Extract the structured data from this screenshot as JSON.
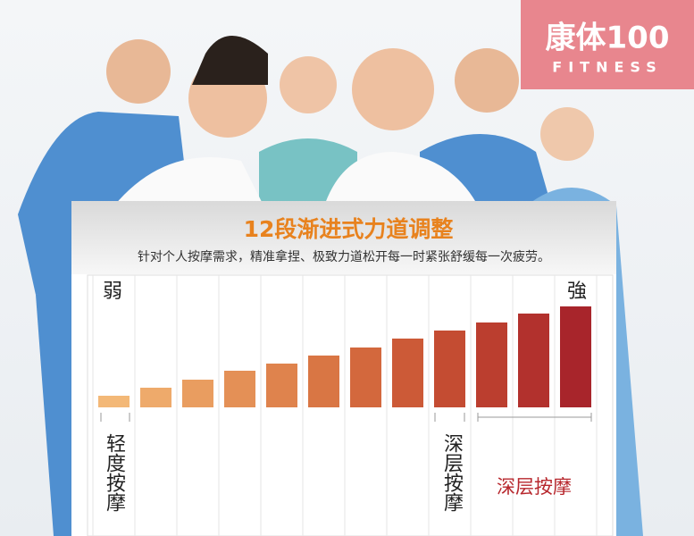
{
  "logo": {
    "name": "康体100",
    "tagline": "FITNESS"
  },
  "chart_data": {
    "type": "bar",
    "title": "12段渐进式力道调整",
    "subtitle": "针对个人按摩需求，精准拿捏、极致力道松开每一时紧张舒缓每一次疲劳。",
    "low_label": "弱",
    "high_label": "強",
    "annotations": [
      "轻度按摩",
      "深层按摩",
      "深层按摩"
    ],
    "categories": [
      null,
      null,
      null,
      null,
      null,
      null,
      null,
      null,
      null,
      null,
      null,
      null
    ],
    "values": [
      13,
      22,
      31,
      41,
      49,
      58,
      67,
      77,
      86,
      95,
      105,
      113
    ],
    "colors": [
      "#f3b877",
      "#eeaa6b",
      "#e99d60",
      "#e49056",
      "#df834d",
      "#d97644",
      "#d3683d",
      "#cc5a37",
      "#c44c32",
      "#bb3e2f",
      "#b2312d",
      "#a8252b"
    ]
  }
}
